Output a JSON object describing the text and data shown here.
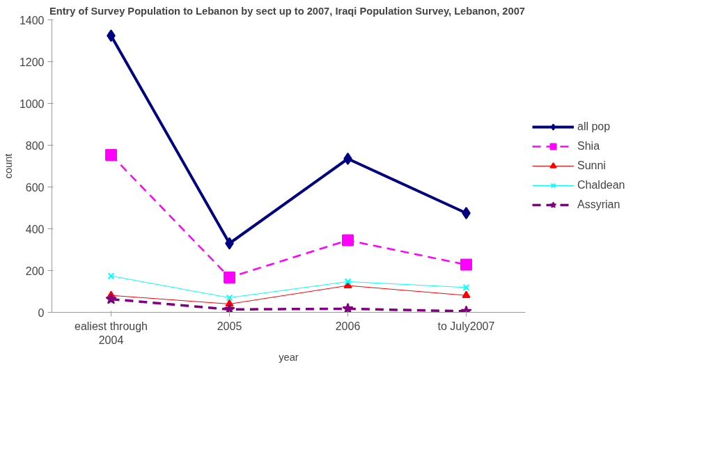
{
  "chart_data": {
    "type": "line",
    "title": "Entry of Survey Population to Lebanon by sect  up to 2007, Iraqi Population Survey, Lebanon, 2007",
    "xlabel": "year",
    "ylabel": "count",
    "categories": [
      "ealiest through 2004",
      "2005",
      "2006",
      "to July2007"
    ],
    "ylim": [
      0,
      1400
    ],
    "yticks": [
      0,
      200,
      400,
      600,
      800,
      1000,
      1200,
      1400
    ],
    "grid": false,
    "legend": "right",
    "series": [
      {
        "name": "all pop",
        "color": "#000080",
        "marker": "diamond",
        "line_style": "solid",
        "values": [
          1324,
          330,
          735,
          475
        ]
      },
      {
        "name": "Shia",
        "color": "#ff00ff",
        "marker": "square",
        "line_style": "dashed",
        "values": [
          753,
          167,
          345,
          228
        ]
      },
      {
        "name": "Sunni",
        "color": "#ff0000",
        "marker": "triangle",
        "line_style": "solid",
        "values": [
          81,
          40,
          128,
          81
        ]
      },
      {
        "name": "Chaldean",
        "color": "#00ffff",
        "marker": "cross",
        "line_style": "solid",
        "values": [
          174,
          70,
          147,
          119
        ]
      },
      {
        "name": "Assyrian",
        "color": "#800080",
        "marker": "star",
        "line_style": "dashed",
        "values": [
          63,
          14,
          17,
          5
        ]
      }
    ]
  }
}
